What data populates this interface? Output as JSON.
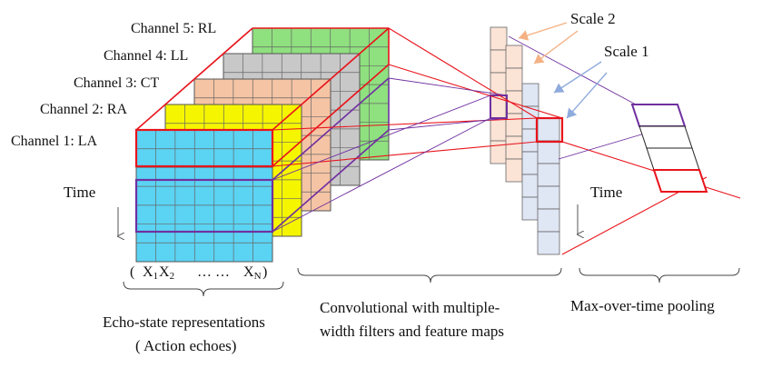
{
  "channels": [
    {
      "label": "Channel 1: LA",
      "color": "#5bd3f3"
    },
    {
      "label": "Channel 2: RA",
      "color": "#f5f500"
    },
    {
      "label": "Channel 3: CT",
      "color": "#f5c4a4"
    },
    {
      "label": "Channel 4: LL",
      "color": "#c8c8c8"
    },
    {
      "label": "Channel 5: RL",
      "color": "#8fe07f"
    }
  ],
  "time_label_left": "Time",
  "time_label_right": "Time",
  "scale2_label": "Scale 2",
  "scale1_label": "Scale 1",
  "x_axis": {
    "open_paren": "(",
    "x1": "X",
    "x1_sub": "1",
    "x2": "X",
    "x2_sub": "2",
    "dots1": "…",
    "dots2": "…",
    "xn": "X",
    "xn_sub": "N",
    "close_paren": ")"
  },
  "caption_echo_line1": "Echo-state representations",
  "caption_echo_line2": "( Action echoes)",
  "caption_conv_line1": "Convolutional with multiple-",
  "caption_conv_line2": "width filters and feature maps",
  "caption_pool": "Max-over-time pooling",
  "colors": {
    "red": "#e8141c",
    "purple": "#7030a0",
    "scale2_arrow": "#f4b183",
    "scale1_arrow": "#8faadc",
    "scale2_fill": "#fbe3d6",
    "scale1_fill": "#dfe6f4"
  }
}
